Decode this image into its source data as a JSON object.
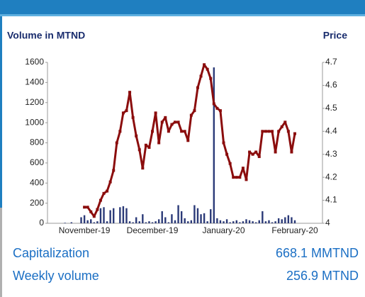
{
  "chart_data": {
    "type": "combo",
    "y_label": "Volume in MTND",
    "y2_label": "Price",
    "categories": [
      null,
      null,
      null,
      null,
      null,
      null,
      null,
      null,
      null,
      "November-19",
      null,
      null,
      null,
      null,
      null,
      null,
      null,
      null,
      null,
      null,
      null,
      null,
      null,
      null,
      null,
      null,
      null,
      null,
      null,
      null,
      "December-19",
      null,
      null,
      null,
      null,
      null,
      null,
      null,
      null,
      null,
      null,
      null,
      null,
      null,
      null,
      null,
      null,
      null,
      null,
      null,
      null,
      null,
      "January-20",
      null,
      null,
      null,
      null,
      null,
      null,
      null,
      null,
      null,
      null,
      null,
      null,
      null,
      null,
      null,
      null,
      null,
      null,
      null,
      null,
      null,
      "February-20"
    ],
    "series": [
      {
        "kind": "bar",
        "color": "#2b3a78",
        "values": [
          0,
          0,
          0,
          5,
          0,
          10,
          0,
          0,
          60,
          80,
          30,
          40,
          10,
          20,
          150,
          160,
          20,
          130,
          150,
          0,
          160,
          170,
          150,
          20,
          10,
          60,
          20,
          90,
          10,
          20,
          10,
          20,
          40,
          120,
          60,
          10,
          90,
          30,
          180,
          120,
          50,
          20,
          30,
          180,
          150,
          90,
          100,
          20,
          140,
          1550,
          50,
          30,
          20,
          40,
          10,
          20,
          30,
          10,
          20,
          40,
          30,
          20,
          10,
          30,
          120,
          20,
          30,
          10,
          20,
          50,
          40,
          60,
          80,
          60,
          30
        ]
      },
      {
        "kind": "line",
        "axis": "y2",
        "color": "#8b0d0d",
        "values": [
          null,
          null,
          null,
          null,
          null,
          null,
          null,
          null,
          null,
          4.07,
          4.07,
          4.05,
          4.03,
          4.06,
          4.1,
          4.13,
          4.14,
          4.18,
          4.23,
          4.35,
          4.4,
          4.48,
          4.49,
          4.57,
          4.46,
          4.38,
          4.32,
          4.24,
          4.34,
          4.33,
          4.4,
          4.48,
          4.35,
          4.44,
          4.46,
          4.4,
          4.43,
          4.44,
          4.44,
          4.4,
          4.4,
          4.36,
          4.47,
          4.49,
          4.59,
          4.64,
          4.69,
          4.67,
          4.63,
          4.52,
          4.5,
          4.49,
          4.35,
          4.3,
          4.26,
          4.2,
          4.2,
          4.2,
          4.24,
          4.19,
          4.31,
          4.3,
          4.31,
          4.29,
          4.4,
          4.4,
          4.4,
          4.4,
          4.31,
          4.4,
          4.42,
          4.44,
          4.4,
          4.31,
          4.39
        ]
      }
    ],
    "ylim": [
      0,
      1600
    ],
    "yticks": [
      0,
      200,
      400,
      600,
      800,
      1000,
      1200,
      1400,
      1600
    ],
    "y2lim": [
      4,
      4.7
    ],
    "y2ticks": [
      4,
      4.1,
      4.2,
      4.3,
      4.4,
      4.5,
      4.6,
      4.7
    ],
    "grid": false
  },
  "stats": [
    {
      "label": "Capitalization",
      "value": "668.1 MMTND"
    },
    {
      "label": "Weekly volume",
      "value": "256.9 MTND"
    }
  ]
}
